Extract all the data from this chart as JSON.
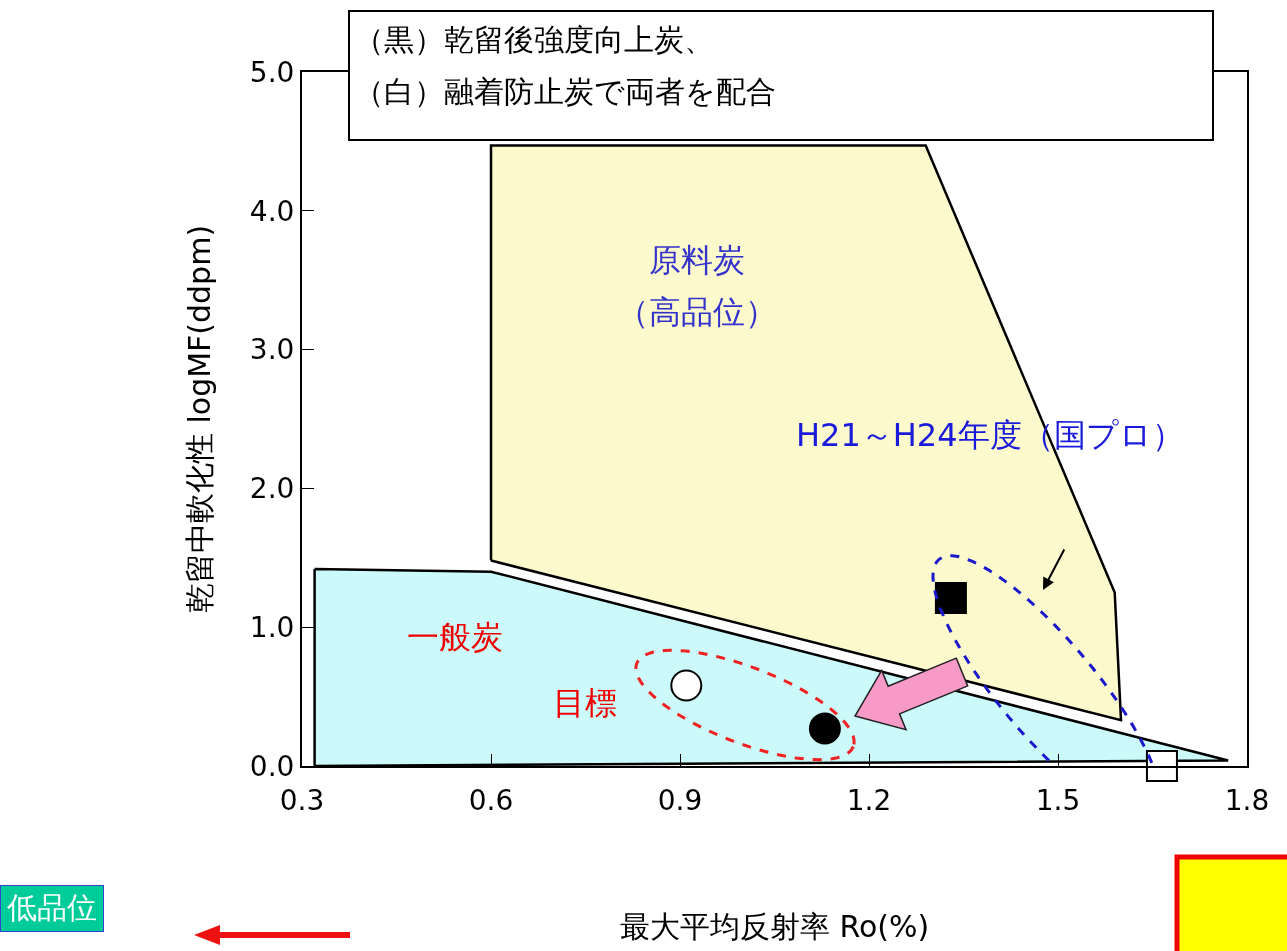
{
  "chart_data": {
    "type": "scatter",
    "xlabel": "最大平均反射率 Ro(%)",
    "ylabel": "乾留中軟化性 logMF(ddpm)",
    "xlim": [
      0.3,
      1.8
    ],
    "ylim": [
      0,
      5.0
    ],
    "xticks": [
      {
        "value": 0.3,
        "label": "0.3"
      },
      {
        "value": 0.6,
        "label": "0.6"
      },
      {
        "value": 0.9,
        "label": "0.9"
      },
      {
        "value": 1.2,
        "label": "1.2"
      },
      {
        "value": 1.5,
        "label": "1.5"
      },
      {
        "value": 1.8,
        "label": "1.8"
      }
    ],
    "yticks": [
      {
        "value": 0,
        "label": "0.0"
      },
      {
        "value": 1,
        "label": "1.0"
      },
      {
        "value": 2,
        "label": "2.0"
      },
      {
        "value": 3,
        "label": "3.0"
      },
      {
        "value": 4,
        "label": "4.0"
      },
      {
        "value": 5,
        "label": "5.0"
      }
    ],
    "grid": false,
    "series": [
      {
        "type": "area",
        "color": "#ccfafa",
        "x": [
          0.32,
          0.6,
          1.77,
          0.32,
          0.32
        ],
        "values": [
          1.42,
          1.4,
          0.04,
          0,
          1.42
        ]
      },
      {
        "type": "area",
        "color": "#fcf9cc",
        "x": [
          0.6,
          0.6,
          1.29,
          1.59,
          1.6,
          0.6
        ],
        "values": [
          1.48,
          4.47,
          4.47,
          1.25,
          0.33,
          1.48
        ]
      },
      {
        "marker": "square",
        "color": "#000000",
        "x": [
          1.33
        ],
        "values": [
          1.21
        ]
      },
      {
        "marker": "circle",
        "color": "#ffffff",
        "x": [
          0.91
        ],
        "values": [
          0.58
        ]
      },
      {
        "marker": "circle",
        "color": "#000000",
        "x": [
          1.13
        ],
        "values": [
          0.27
        ]
      },
      {
        "marker": "square",
        "color": "#ffffff",
        "x": [
          1.665
        ],
        "values": [
          0
        ]
      }
    ],
    "annotations": [
      "（黒）乾留後強度向上炭、",
      "（白）融着防止炭で両者を配合",
      "低品位",
      "原料炭",
      "（高品位）",
      "一般炭",
      "目標",
      "H21～H24年度（国プロ）"
    ]
  }
}
